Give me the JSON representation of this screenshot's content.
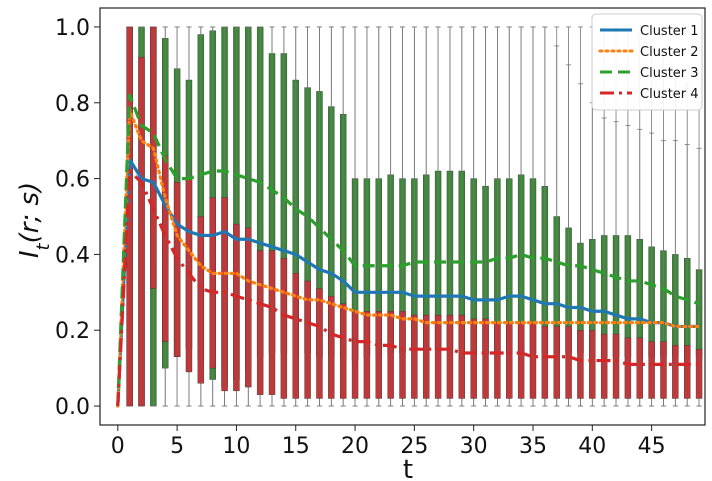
{
  "chart_data": {
    "type": "box",
    "xlabel": "t",
    "ylabel": "I_t(r; s)",
    "xlim": [
      -1.5,
      49.5
    ],
    "ylim": [
      -0.05,
      1.05
    ],
    "xticks": [
      0,
      5,
      10,
      15,
      20,
      25,
      30,
      35,
      40,
      45
    ],
    "yticks": [
      "0.0",
      "0.2",
      "0.4",
      "0.6",
      "0.8",
      "1.0"
    ],
    "grid": false,
    "legend_position": "top-right",
    "series": [
      {
        "name": "Cluster 1",
        "color": "#1f77b4",
        "style": "solid",
        "x": [
          0,
          1,
          2,
          3,
          4,
          5,
          6,
          7,
          8,
          9,
          10,
          11,
          12,
          13,
          14,
          15,
          16,
          17,
          18,
          19,
          20,
          21,
          22,
          23,
          24,
          25,
          26,
          27,
          28,
          29,
          30,
          31,
          32,
          33,
          34,
          35,
          36,
          37,
          38,
          39,
          40,
          41,
          42,
          43,
          44,
          45,
          46,
          47,
          48,
          49
        ],
        "values": [
          0.0,
          0.65,
          0.6,
          0.59,
          0.53,
          0.48,
          0.46,
          0.45,
          0.45,
          0.46,
          0.44,
          0.44,
          0.43,
          0.42,
          0.41,
          0.4,
          0.38,
          0.36,
          0.35,
          0.33,
          0.3,
          0.3,
          0.3,
          0.3,
          0.3,
          0.29,
          0.29,
          0.29,
          0.29,
          0.29,
          0.28,
          0.28,
          0.28,
          0.29,
          0.29,
          0.28,
          0.27,
          0.27,
          0.26,
          0.26,
          0.25,
          0.25,
          0.24,
          0.23,
          0.23,
          0.22,
          0.22,
          0.21,
          0.21,
          0.21
        ]
      },
      {
        "name": "Cluster 2",
        "color": "#ff7f0e",
        "style": "dotted",
        "x": [
          0,
          1,
          2,
          3,
          4,
          5,
          6,
          7,
          8,
          9,
          10,
          11,
          12,
          13,
          14,
          15,
          16,
          17,
          18,
          19,
          20,
          21,
          22,
          23,
          24,
          25,
          26,
          27,
          28,
          29,
          30,
          31,
          32,
          33,
          34,
          35,
          36,
          37,
          38,
          39,
          40,
          41,
          42,
          43,
          44,
          45,
          46,
          47,
          48,
          49
        ],
        "values": [
          0.0,
          0.78,
          0.7,
          0.68,
          0.55,
          0.45,
          0.41,
          0.37,
          0.35,
          0.35,
          0.35,
          0.33,
          0.32,
          0.31,
          0.3,
          0.29,
          0.28,
          0.28,
          0.27,
          0.26,
          0.25,
          0.24,
          0.24,
          0.24,
          0.23,
          0.23,
          0.22,
          0.22,
          0.22,
          0.22,
          0.22,
          0.22,
          0.22,
          0.22,
          0.22,
          0.22,
          0.22,
          0.22,
          0.22,
          0.22,
          0.22,
          0.22,
          0.22,
          0.22,
          0.22,
          0.22,
          0.22,
          0.21,
          0.21,
          0.21
        ]
      },
      {
        "name": "Cluster 3",
        "color": "#2ca02c",
        "style": "dashed",
        "x": [
          0,
          1,
          2,
          3,
          4,
          5,
          6,
          7,
          8,
          9,
          10,
          11,
          12,
          13,
          14,
          15,
          16,
          17,
          18,
          19,
          20,
          21,
          22,
          23,
          24,
          25,
          26,
          27,
          28,
          29,
          30,
          31,
          32,
          33,
          34,
          35,
          36,
          37,
          38,
          39,
          40,
          41,
          42,
          43,
          44,
          45,
          46,
          47,
          48,
          49
        ],
        "values": [
          0.0,
          0.82,
          0.74,
          0.72,
          0.65,
          0.6,
          0.6,
          0.61,
          0.62,
          0.62,
          0.61,
          0.6,
          0.59,
          0.57,
          0.55,
          0.52,
          0.5,
          0.47,
          0.44,
          0.41,
          0.37,
          0.37,
          0.37,
          0.37,
          0.37,
          0.38,
          0.38,
          0.38,
          0.38,
          0.38,
          0.38,
          0.38,
          0.39,
          0.39,
          0.4,
          0.39,
          0.39,
          0.38,
          0.37,
          0.37,
          0.36,
          0.35,
          0.34,
          0.33,
          0.33,
          0.32,
          0.31,
          0.29,
          0.28,
          0.27
        ]
      },
      {
        "name": "Cluster 4",
        "color": "#d62728",
        "style": "dashdot",
        "x": [
          0,
          1,
          2,
          3,
          4,
          5,
          6,
          7,
          8,
          9,
          10,
          11,
          12,
          13,
          14,
          15,
          16,
          17,
          18,
          19,
          20,
          21,
          22,
          23,
          24,
          25,
          26,
          27,
          28,
          29,
          30,
          31,
          32,
          33,
          34,
          35,
          36,
          37,
          38,
          39,
          40,
          41,
          42,
          43,
          44,
          45,
          46,
          47,
          48,
          49
        ],
        "values": [
          0.0,
          0.62,
          0.59,
          0.52,
          0.45,
          0.39,
          0.35,
          0.31,
          0.3,
          0.3,
          0.29,
          0.28,
          0.27,
          0.26,
          0.24,
          0.23,
          0.22,
          0.21,
          0.19,
          0.18,
          0.17,
          0.17,
          0.16,
          0.16,
          0.15,
          0.15,
          0.15,
          0.15,
          0.15,
          0.14,
          0.14,
          0.14,
          0.14,
          0.14,
          0.14,
          0.13,
          0.13,
          0.13,
          0.13,
          0.12,
          0.12,
          0.12,
          0.12,
          0.11,
          0.11,
          0.11,
          0.11,
          0.11,
          0.11,
          0.11
        ]
      }
    ],
    "boxplots": [
      {
        "name": "Cluster 3",
        "color": "#3a8a35",
        "whisker_max": [
          0.0,
          1.0,
          1.0,
          1.0,
          1.0,
          1.0,
          1.0,
          1.0,
          1.0,
          1.0,
          1.0,
          1.0,
          1.0,
          1.0,
          1.0,
          1.0,
          1.0,
          1.0,
          1.0,
          1.0,
          1.0,
          1.0,
          1.0,
          1.0,
          1.0,
          1.0,
          1.0,
          1.0,
          1.0,
          1.0,
          1.0,
          1.0,
          1.0,
          1.0,
          1.0,
          1.0,
          1.0,
          1.0,
          1.0,
          1.0,
          1.0,
          1.0,
          1.0,
          0.99,
          0.98,
          0.95,
          0.92,
          0.88,
          0.85,
          0.8
        ],
        "q3": [
          0.0,
          1.0,
          1.0,
          1.0,
          0.97,
          0.89,
          0.86,
          0.98,
          0.99,
          1.0,
          1.0,
          1.0,
          1.0,
          0.93,
          0.93,
          0.86,
          0.84,
          0.83,
          0.79,
          0.77,
          0.6,
          0.6,
          0.6,
          0.61,
          0.6,
          0.6,
          0.61,
          0.62,
          0.62,
          0.62,
          0.6,
          0.58,
          0.6,
          0.6,
          0.61,
          0.6,
          0.58,
          0.5,
          0.47,
          0.43,
          0.44,
          0.45,
          0.45,
          0.45,
          0.44,
          0.42,
          0.41,
          0.4,
          0.39,
          0.36
        ],
        "q1": [
          0.0,
          0.0,
          0.0,
          0.0,
          0.1,
          0.13,
          0.15,
          0.12,
          0.07,
          0.05,
          0.07,
          0.09,
          0.13,
          0.14,
          0.14,
          0.13,
          0.14,
          0.13,
          0.13,
          0.13,
          0.12,
          0.13,
          0.13,
          0.14,
          0.14,
          0.15,
          0.15,
          0.15,
          0.15,
          0.15,
          0.14,
          0.14,
          0.14,
          0.14,
          0.14,
          0.14,
          0.14,
          0.14,
          0.14,
          0.14,
          0.13,
          0.13,
          0.13,
          0.13,
          0.13,
          0.13,
          0.13,
          0.13,
          0.13,
          0.13
        ],
        "whisker_min": [
          0.0,
          0.0,
          0.0,
          0.0,
          0.0,
          0.0,
          0.0,
          0.0,
          0.0,
          0.0,
          0.0,
          0.0,
          0.0,
          0.0,
          0.0,
          0.0,
          0.0,
          0.0,
          0.0,
          0.0,
          0.0,
          0.0,
          0.0,
          0.0,
          0.0,
          0.0,
          0.0,
          0.0,
          0.0,
          0.0,
          0.0,
          0.0,
          0.0,
          0.0,
          0.0,
          0.0,
          0.0,
          0.0,
          0.0,
          0.0,
          0.0,
          0.0,
          0.0,
          0.0,
          0.0,
          0.0,
          0.0,
          0.0,
          0.0,
          0.0
        ]
      },
      {
        "name": "Cluster 4",
        "color": "#c0393a",
        "whisker_max": [
          0.0,
          1.0,
          1.0,
          1.0,
          1.0,
          1.0,
          1.0,
          1.0,
          1.0,
          1.0,
          1.0,
          1.0,
          1.0,
          1.0,
          1.0,
          1.0,
          1.0,
          1.0,
          1.0,
          1.0,
          1.0,
          1.0,
          1.0,
          1.0,
          1.0,
          1.0,
          1.0,
          1.0,
          1.0,
          1.0,
          1.0,
          1.0,
          1.0,
          1.0,
          1.0,
          1.0,
          1.0,
          0.95,
          0.9,
          0.85,
          0.8,
          0.76,
          0.75,
          0.74,
          0.73,
          0.72,
          0.7,
          0.7,
          0.69,
          0.68
        ],
        "q3": [
          0.0,
          1.0,
          0.92,
          1.0,
          0.66,
          0.59,
          0.6,
          0.5,
          0.55,
          0.55,
          0.48,
          0.47,
          0.41,
          0.41,
          0.39,
          0.35,
          0.33,
          0.31,
          0.29,
          0.27,
          0.25,
          0.25,
          0.25,
          0.25,
          0.25,
          0.24,
          0.24,
          0.24,
          0.24,
          0.24,
          0.23,
          0.23,
          0.22,
          0.22,
          0.22,
          0.22,
          0.21,
          0.21,
          0.21,
          0.2,
          0.2,
          0.19,
          0.19,
          0.18,
          0.18,
          0.17,
          0.17,
          0.16,
          0.16,
          0.15
        ],
        "q1": [
          0.0,
          0.0,
          0.0,
          0.31,
          0.17,
          0.13,
          0.09,
          0.06,
          0.1,
          0.04,
          0.04,
          0.05,
          0.03,
          0.03,
          0.02,
          0.02,
          0.02,
          0.02,
          0.02,
          0.02,
          0.02,
          0.02,
          0.02,
          0.02,
          0.02,
          0.02,
          0.02,
          0.02,
          0.02,
          0.02,
          0.02,
          0.02,
          0.02,
          0.02,
          0.02,
          0.02,
          0.02,
          0.02,
          0.02,
          0.02,
          0.02,
          0.02,
          0.02,
          0.02,
          0.02,
          0.02,
          0.02,
          0.02,
          0.02,
          0.02
        ],
        "whisker_min": [
          0.0,
          0.0,
          0.0,
          0.0,
          0.0,
          0.0,
          0.0,
          0.0,
          0.0,
          0.0,
          0.0,
          0.0,
          0.0,
          0.0,
          0.0,
          0.0,
          0.0,
          0.0,
          0.0,
          0.0,
          0.0,
          0.0,
          0.0,
          0.0,
          0.0,
          0.0,
          0.0,
          0.0,
          0.0,
          0.0,
          0.0,
          0.0,
          0.0,
          0.0,
          0.0,
          0.0,
          0.0,
          0.0,
          0.0,
          0.0,
          0.0,
          0.0,
          0.0,
          0.0,
          0.0,
          0.0,
          0.0,
          0.0,
          0.0,
          0.0
        ]
      }
    ]
  }
}
